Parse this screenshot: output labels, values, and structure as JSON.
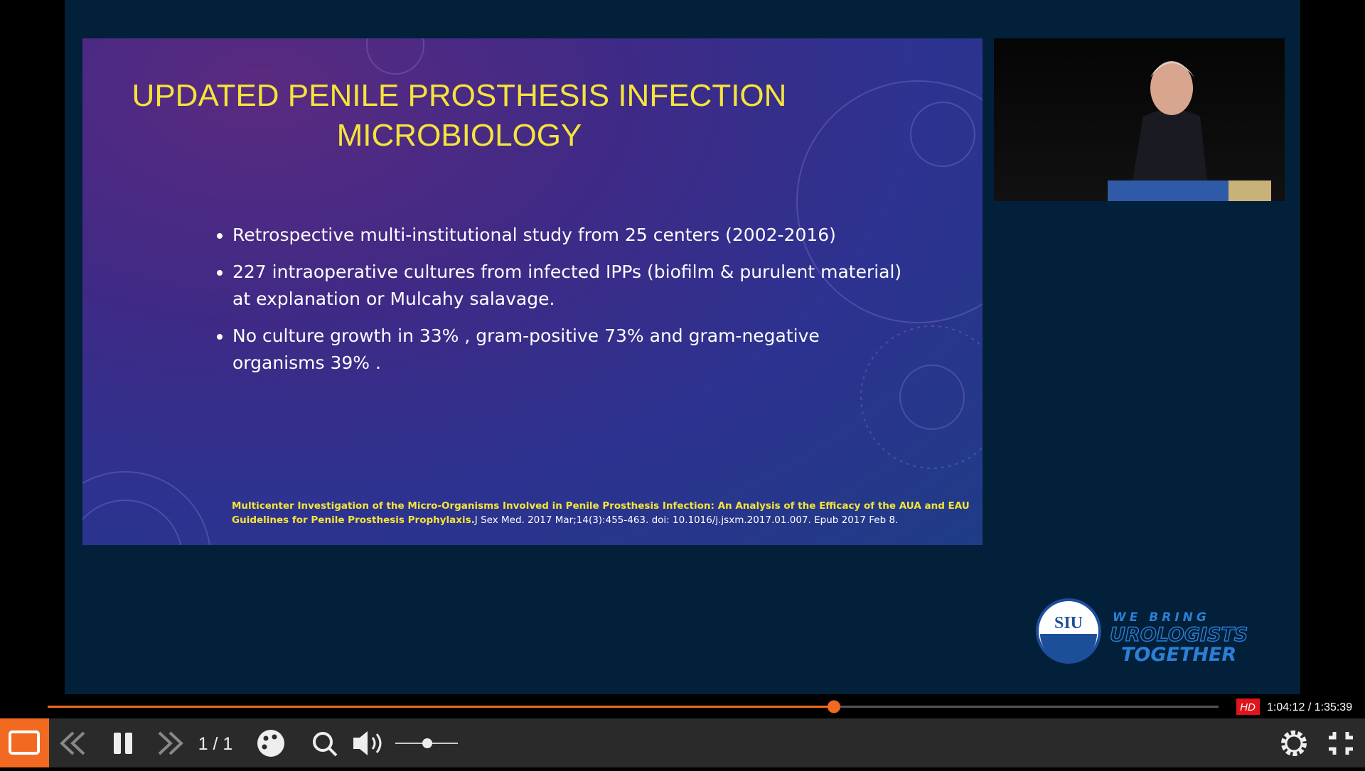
{
  "slide": {
    "title_line1": "UPDATED PENILE PROSTHESIS INFECTION",
    "title_line2": "MICROBIOLOGY",
    "bullets": [
      "Retrospective multi-institutional study from 25 centers (2002-2016)",
      "227 intraoperative cultures from infected IPPs (biofilm & purulent material) at explanation or Mulcahy salavage.",
      "No culture growth in 33% , gram-positive 73% and gram-negative organisms 39% ."
    ],
    "citation_bold": "Multicenter Investigation of the Micro-Organisms Involved in Penile Prosthesis Infection: An Analysis of the Efficacy of the AUA and EAU Guidelines for Penile Prosthesis Prophylaxis.",
    "citation_rest": "J Sex Med. 2017 Mar;14(3):455-463. doi: 10.1016/j.jsxm.2017.01.007. Epub 2017 Feb 8."
  },
  "logo": {
    "badge": "SIU",
    "line1": "WE BRING",
    "line2": "UROLOGISTS",
    "line3": "TOGETHER"
  },
  "player": {
    "hd": "HD",
    "time": "1:04:12 / 1:35:39",
    "pages": "1 / 1"
  }
}
